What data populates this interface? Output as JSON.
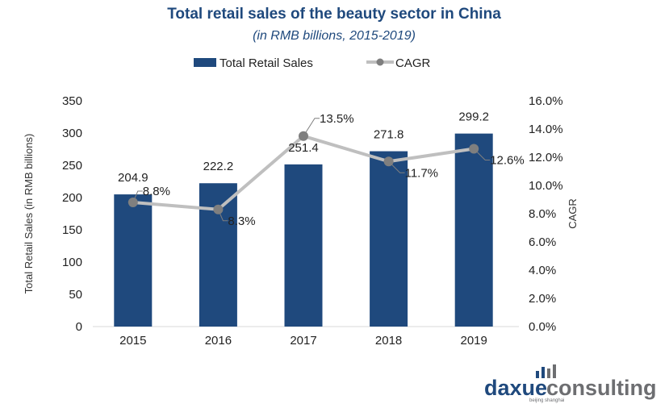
{
  "chart_data": {
    "type": "bar",
    "title": "Total retail sales of the beauty sector in China",
    "subtitle": "(in RMB billions, 2015-2019)",
    "categories": [
      "2015",
      "2016",
      "2017",
      "2018",
      "2019"
    ],
    "series": [
      {
        "name": "Total Retail Sales",
        "type": "bar",
        "axis": "left",
        "values": [
          204.9,
          222.2,
          251.4,
          271.8,
          299.2
        ],
        "labels": [
          "204.9",
          "222.2",
          "251.4",
          "271.8",
          "299.2"
        ],
        "color": "#1f497d"
      },
      {
        "name": "CAGR",
        "type": "line",
        "axis": "right",
        "values": [
          8.8,
          8.3,
          13.5,
          11.7,
          12.6
        ],
        "labels": [
          "8.8%",
          "8.3%",
          "13.5%",
          "11.7%",
          "12.6%"
        ],
        "color": "#bfbfbf",
        "marker_color": "#7f7f7f"
      }
    ],
    "ylabel": "Total Retail Sales (in RMB billions)",
    "y2label": "CAGR",
    "ylim": [
      0,
      350
    ],
    "y2lim": [
      0,
      16
    ],
    "yticks": [
      "0",
      "50",
      "100",
      "150",
      "200",
      "250",
      "300",
      "350"
    ],
    "y2ticks": [
      "0.0%",
      "2.0%",
      "4.0%",
      "6.0%",
      "8.0%",
      "10.0%",
      "12.0%",
      "14.0%",
      "16.0%"
    ],
    "legend_position": "top",
    "grid": false
  },
  "logo": {
    "part1": "daxue",
    "part2": "consulting",
    "tagline": "beijing shanghai"
  }
}
